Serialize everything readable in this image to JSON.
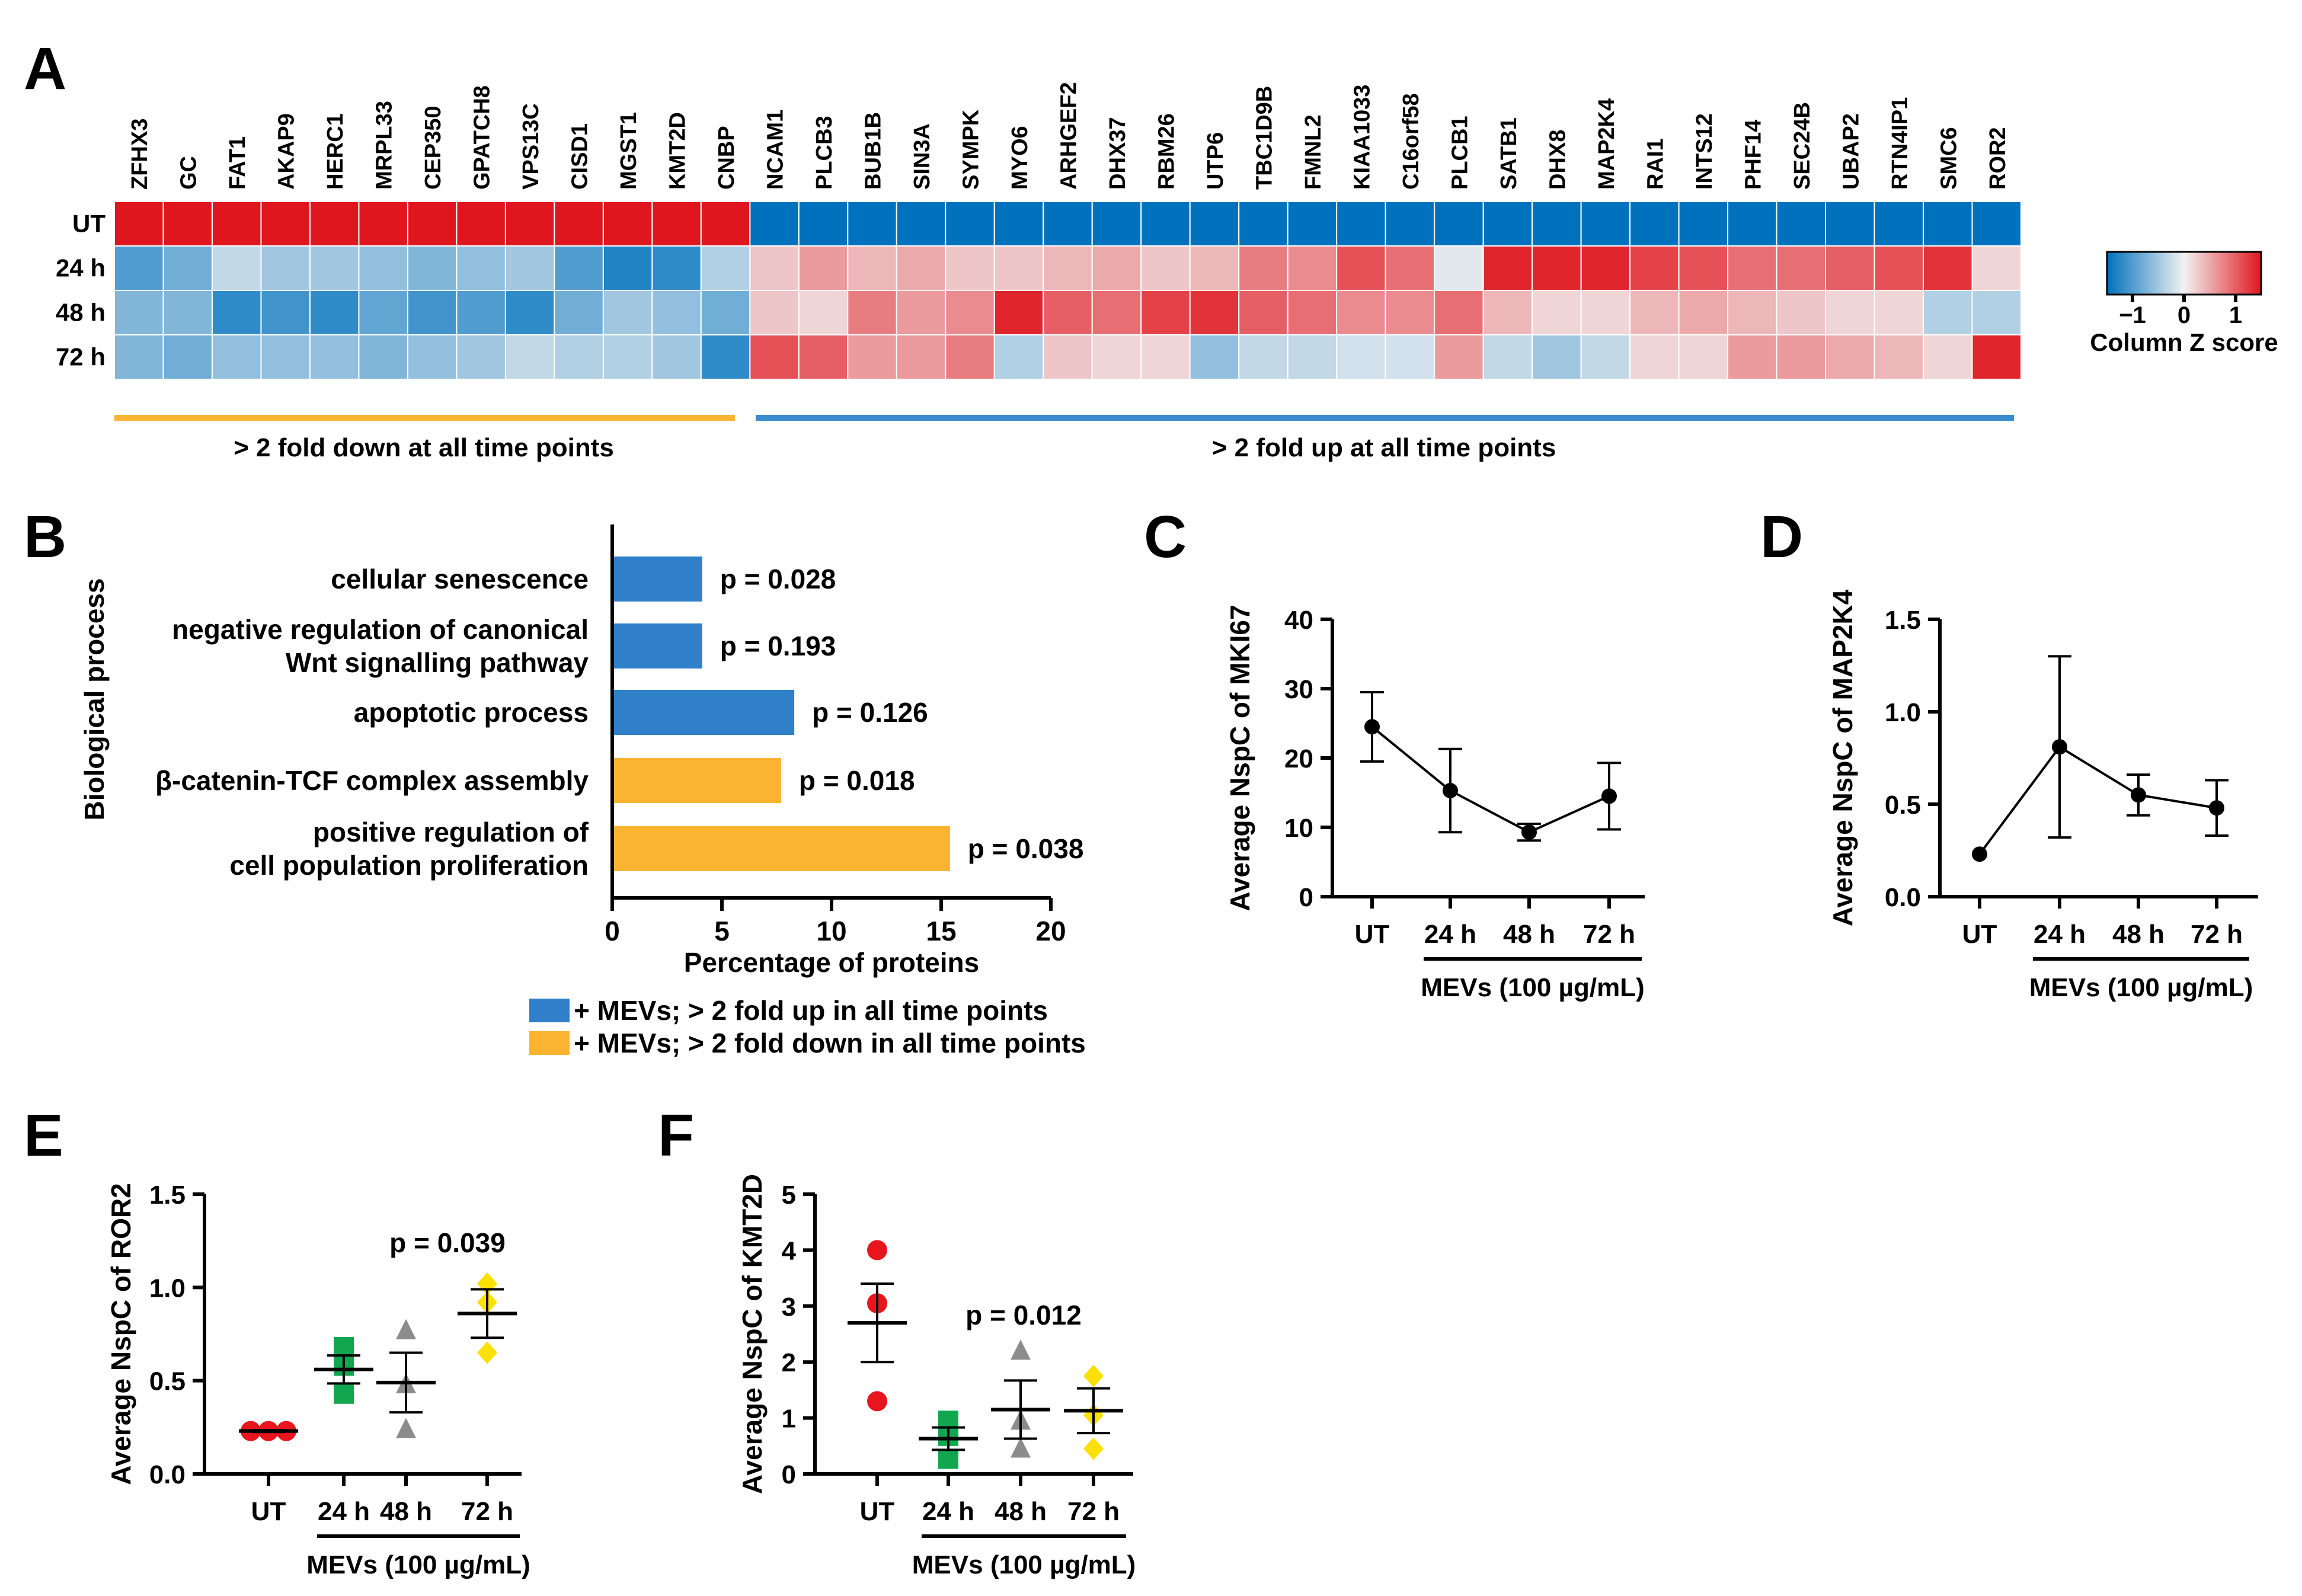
{
  "colors": {
    "neg": "#0072BD",
    "mid": "#F2F2F2",
    "pos": "#E0161E",
    "bar_up": "#2F80C8",
    "bar_down": "#FBB431",
    "underline_down": "#FBB431",
    "underline_up": "#3A8AD0",
    "ut": "#E8141E",
    "h24": "#12A64F",
    "h48": "#8C8C8C",
    "h72": "#FCE000"
  },
  "panels": {
    "A": "A",
    "B": "B",
    "C": "C",
    "D": "D",
    "E": "E",
    "F": "F"
  },
  "chart_data": [
    {
      "id": "A",
      "type": "heatmap",
      "genes": [
        "ZFHX3",
        "GC",
        "FAT1",
        "AKAP9",
        "HERC1",
        "MRPL33",
        "CEP350",
        "GPATCH8",
        "VPS13C",
        "CISD1",
        "MGST1",
        "KMT2D",
        "CNBP",
        "NCAM1",
        "PLCB3",
        "BUB1B",
        "SIN3A",
        "SYMPK",
        "MYO6",
        "ARHGEF2",
        "DHX37",
        "RBM26",
        "UTP6",
        "TBC1D9B",
        "FMNL2",
        "KIAA1033",
        "C16orf58",
        "PLCB1",
        "SATB1",
        "DHX8",
        "MAP2K4",
        "RAI1",
        "INTS12",
        "PHF14",
        "SEC24B",
        "UBAP2",
        "RTN4IP1",
        "SMC6",
        "ROR2"
      ],
      "rows": [
        "UT",
        "24 h",
        "48 h",
        "72 h"
      ],
      "z": [
        [
          1.5,
          1.5,
          1.5,
          1.5,
          1.5,
          1.5,
          1.5,
          1.5,
          1.5,
          1.5,
          1.5,
          1.5,
          1.5,
          -1.5,
          -1.5,
          -1.5,
          -1.5,
          -1.5,
          -1.5,
          -1.5,
          -1.5,
          -1.5,
          -1.5,
          -1.5,
          -1.5,
          -1.5,
          -1.5,
          -1.5,
          -1.5,
          -1.5,
          -1.5,
          -1.5,
          -1.5,
          -1.5,
          -1.5,
          -1.5,
          -1.5,
          -1.5,
          -1.5
        ],
        [
          -1.0,
          -0.8,
          -0.3,
          -0.5,
          -0.5,
          -0.6,
          -0.7,
          -0.6,
          -0.5,
          -1.0,
          -1.3,
          -1.2,
          -0.4,
          0.3,
          0.6,
          0.4,
          0.5,
          0.3,
          0.3,
          0.4,
          0.5,
          0.3,
          0.4,
          0.8,
          0.7,
          1.1,
          0.9,
          -0.1,
          1.4,
          1.4,
          1.4,
          1.2,
          1.1,
          0.9,
          0.9,
          1.0,
          1.1,
          1.3,
          0.2
        ],
        [
          -0.7,
          -0.7,
          -1.2,
          -1.1,
          -1.2,
          -0.9,
          -1.1,
          -1.0,
          -1.2,
          -0.8,
          -0.5,
          -0.6,
          -0.8,
          0.3,
          0.2,
          0.8,
          0.6,
          0.7,
          1.4,
          1.0,
          0.9,
          1.2,
          1.3,
          1.0,
          0.9,
          0.7,
          0.7,
          0.9,
          0.4,
          0.2,
          0.2,
          0.4,
          0.5,
          0.4,
          0.3,
          0.2,
          0.2,
          -0.4,
          -0.4
        ],
        [
          -0.7,
          -0.8,
          -0.6,
          -0.6,
          -0.6,
          -0.7,
          -0.6,
          -0.5,
          -0.3,
          -0.4,
          -0.4,
          -0.5,
          -1.2,
          1.1,
          1.0,
          0.6,
          0.6,
          0.8,
          -0.4,
          0.3,
          0.2,
          0.2,
          -0.6,
          -0.3,
          -0.3,
          -0.2,
          -0.2,
          0.6,
          -0.3,
          -0.5,
          -0.3,
          0.2,
          0.2,
          0.6,
          0.6,
          0.5,
          0.4,
          0.2,
          1.4
        ]
      ],
      "colorbar": {
        "ticks": [
          "−1",
          "0",
          "1"
        ],
        "label": "Column Z score"
      },
      "groups": [
        {
          "label": "> 2 fold down at all time points"
        },
        {
          "label": "> 2 fold up at all time points"
        }
      ]
    },
    {
      "id": "B",
      "type": "bar",
      "orientation": "horizontal",
      "ylabel": "Biological process",
      "xlabel": "Percentage of proteins",
      "xlim": [
        0,
        20
      ],
      "xticks": [
        "0",
        "5",
        "10",
        "15",
        "20"
      ],
      "categories": [
        {
          "lines": [
            "cellular senescence"
          ],
          "value": 4.1,
          "p": "p = 0.028",
          "group": "up"
        },
        {
          "lines": [
            "negative regulation of canonical",
            "Wnt signalling pathway"
          ],
          "value": 4.1,
          "p": "p = 0.193",
          "group": "up"
        },
        {
          "lines": [
            "apoptotic process"
          ],
          "value": 8.3,
          "p": "p = 0.126",
          "group": "up"
        },
        {
          "lines": [
            "β-catenin-TCF complex assembly"
          ],
          "value": 7.7,
          "p": "p = 0.018",
          "group": "down"
        },
        {
          "lines": [
            "positive regulation of",
            "cell population proliferation"
          ],
          "value": 15.4,
          "p": "p = 0.038",
          "group": "down"
        }
      ],
      "legend": [
        {
          "group": "up",
          "label": "+ MEVs; > 2 fold up in all time points"
        },
        {
          "group": "down",
          "label": "+ MEVs; > 2 fold down in all time points"
        }
      ]
    },
    {
      "id": "C",
      "type": "line",
      "ylabel": "Average NspC of MKI67",
      "categories": [
        "UT",
        "24 h",
        "48 h",
        "72 h"
      ],
      "values": [
        24.5,
        15.3,
        9.3,
        14.5
      ],
      "errors": [
        5.0,
        6.0,
        1.2,
        4.8
      ],
      "ylim": [
        0,
        40
      ],
      "yticks": [
        "0",
        "10",
        "20",
        "30",
        "40"
      ],
      "group_label": "MEVs (100 µg/mL)"
    },
    {
      "id": "D",
      "type": "line",
      "ylabel": "Average NspC of MAP2K4",
      "categories": [
        "UT",
        "24 h",
        "48 h",
        "72 h"
      ],
      "values": [
        0.23,
        0.81,
        0.55,
        0.48
      ],
      "errors": [
        0.0,
        0.49,
        0.11,
        0.15
      ],
      "ylim": [
        0,
        1.5
      ],
      "yticks": [
        "0.0",
        "0.5",
        "1.0",
        "1.5"
      ],
      "group_label": "MEVs (100 µg/mL)"
    },
    {
      "id": "E",
      "type": "scatter",
      "ylabel": "Average NspC of ROR2",
      "categories": [
        "UT",
        "24 h",
        "48 h",
        "72 h"
      ],
      "points": [
        [
          0.23,
          0.23,
          0.23
        ],
        [
          0.68,
          0.58,
          0.43
        ],
        [
          0.77,
          0.48,
          0.24
        ],
        [
          1.02,
          0.92,
          0.65
        ]
      ],
      "means": [
        0.23,
        0.56,
        0.49,
        0.86
      ],
      "sem": [
        0.005,
        0.075,
        0.16,
        0.13
      ],
      "markers": [
        "circle",
        "square",
        "triangle",
        "diamond"
      ],
      "ylim": [
        0,
        1.5
      ],
      "yticks": [
        "0.0",
        "0.5",
        "1.0",
        "1.5"
      ],
      "annotation": "p = 0.039",
      "group_label": "MEVs (100 µg/mL)"
    },
    {
      "id": "F",
      "type": "scatter",
      "ylabel": "Average NspC of KMT2D",
      "categories": [
        "UT",
        "24 h",
        "48 h",
        "72 h"
      ],
      "points": [
        [
          4.0,
          3.05,
          1.3
        ],
        [
          0.95,
          0.68,
          0.27
        ],
        [
          2.2,
          0.95,
          0.45
        ],
        [
          1.75,
          1.05,
          0.45
        ]
      ],
      "means": [
        2.7,
        0.63,
        1.15,
        1.13
      ],
      "sem": [
        0.7,
        0.2,
        0.52,
        0.4
      ],
      "markers": [
        "circle",
        "square",
        "triangle",
        "diamond"
      ],
      "ylim": [
        0,
        5
      ],
      "yticks": [
        "0",
        "1",
        "2",
        "3",
        "4",
        "5"
      ],
      "annotation": "p = 0.012",
      "group_label": "MEVs (100 µg/mL)"
    }
  ]
}
